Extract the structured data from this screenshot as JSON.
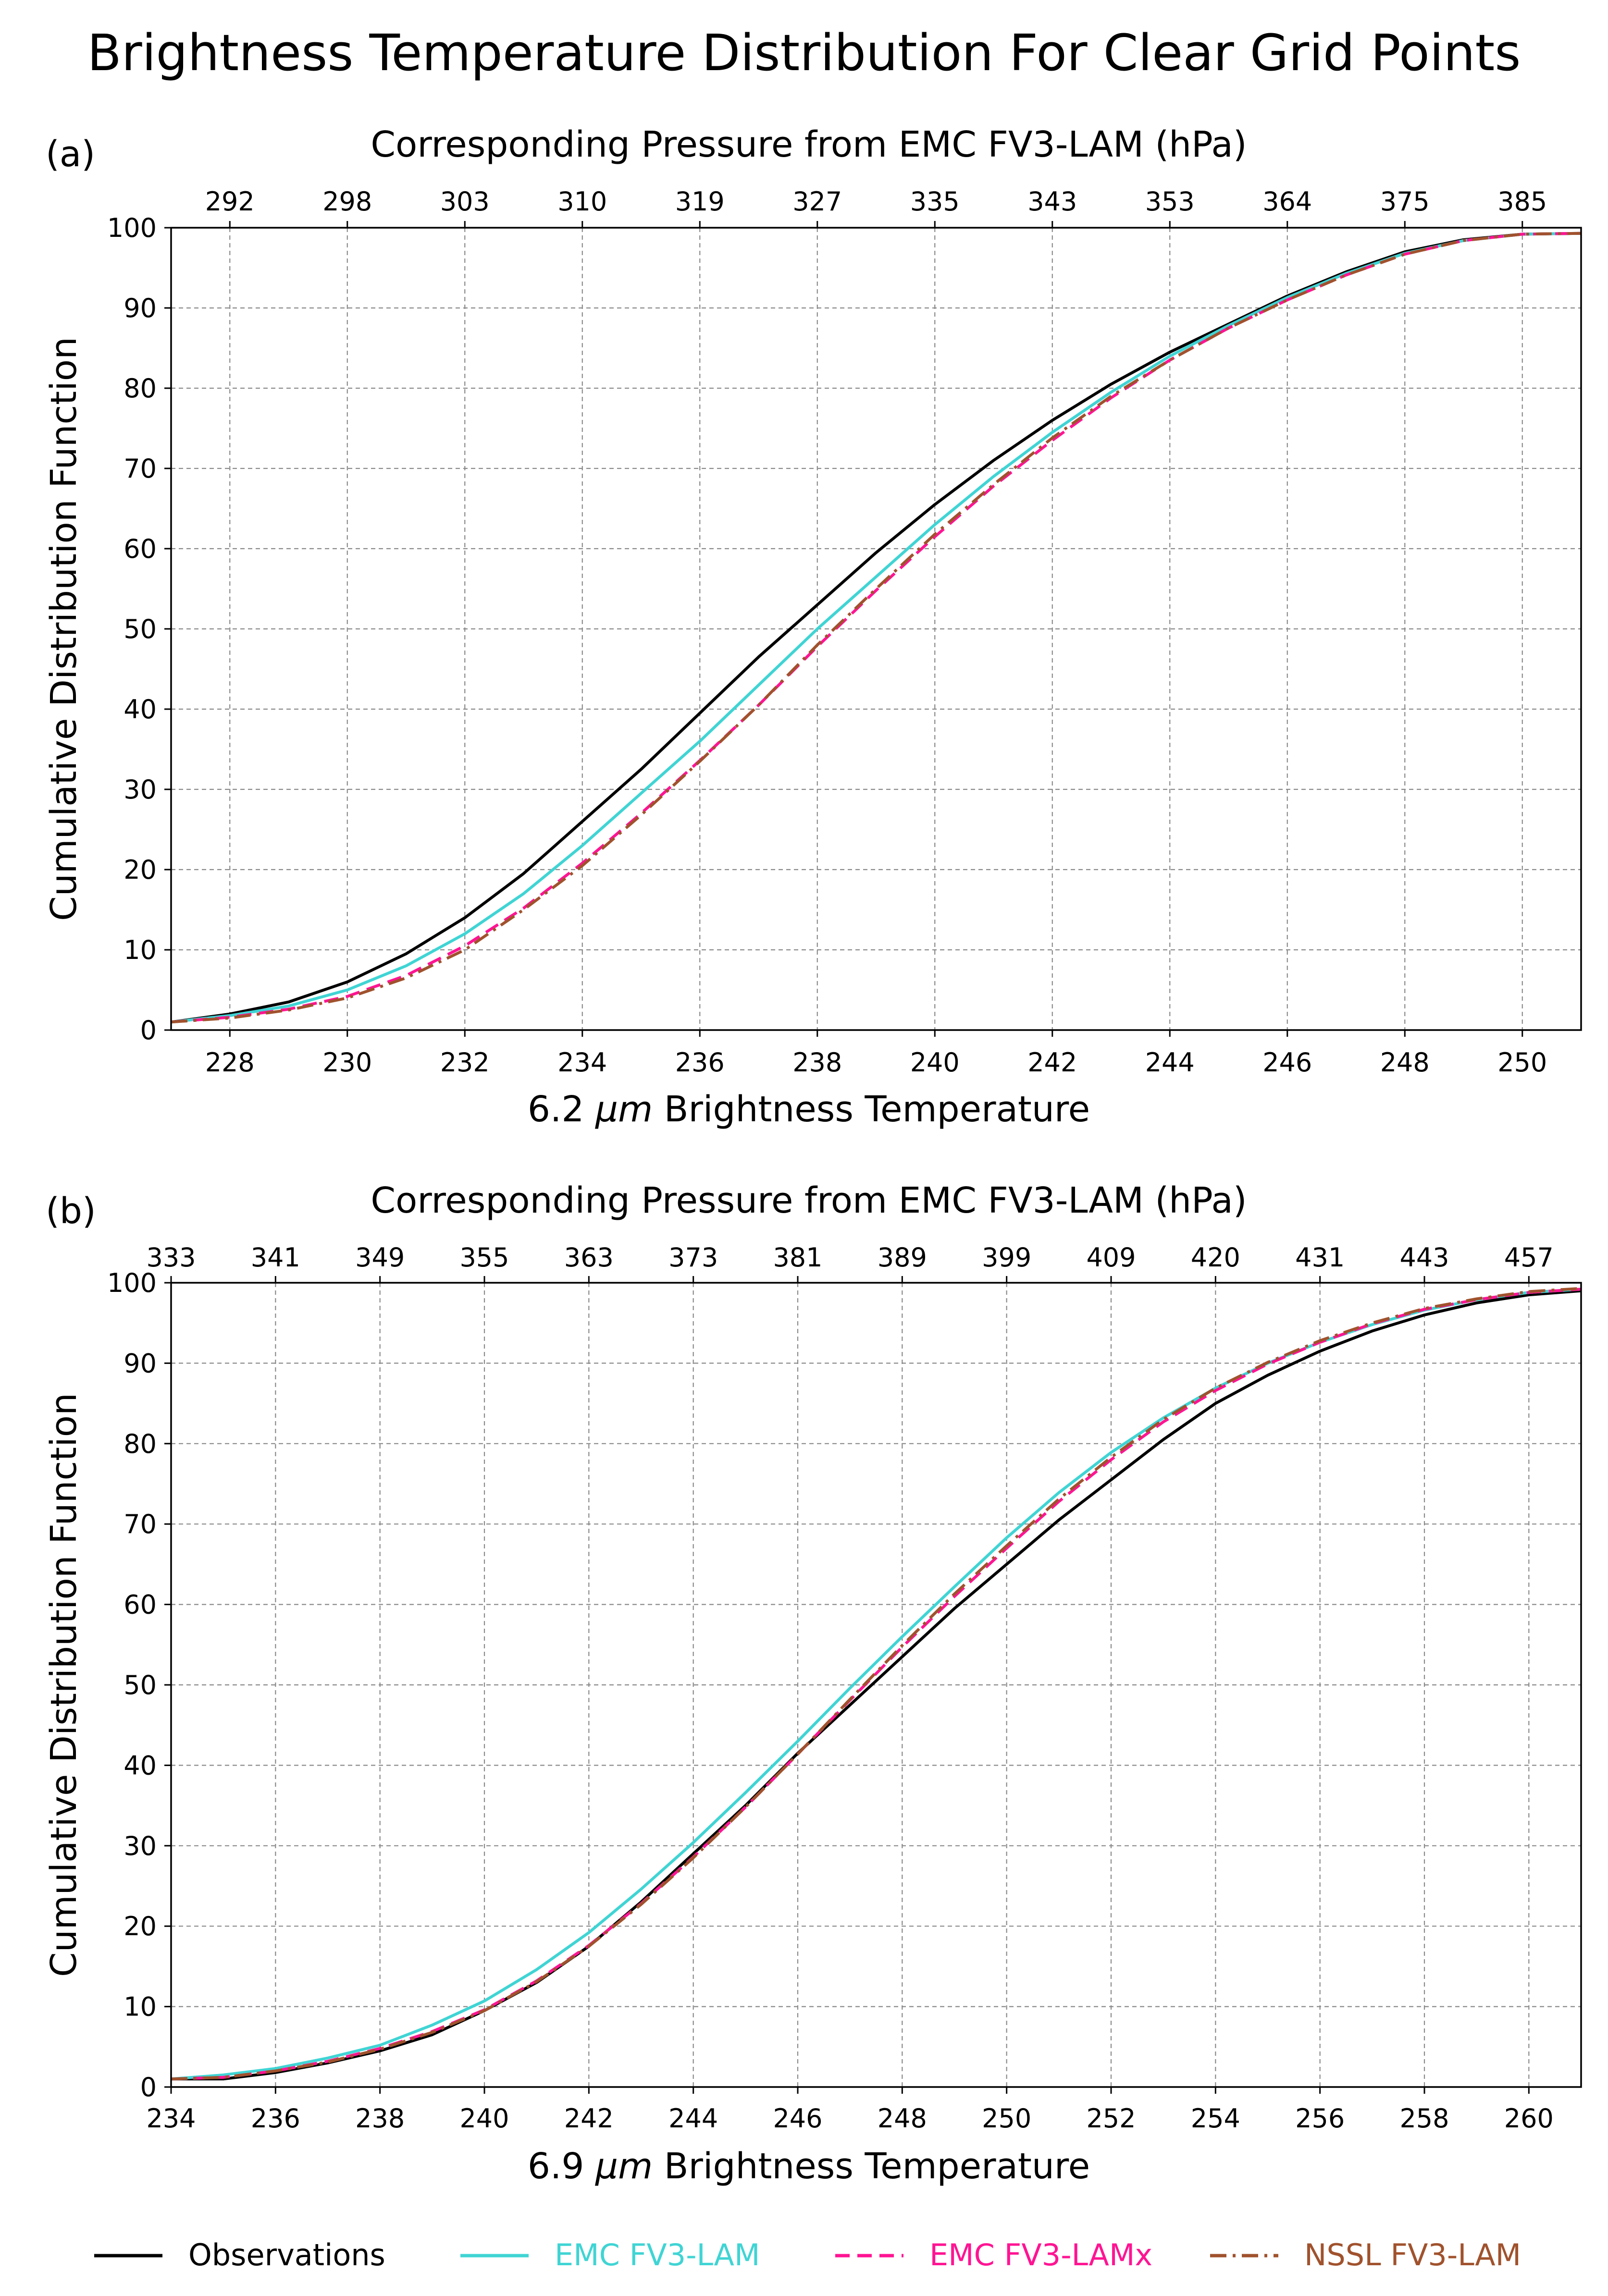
{
  "figure": {
    "title": "Brightness Temperature Distribution For Clear Grid Points"
  },
  "series_styles": [
    {
      "name": "Observations",
      "color": "#000000",
      "dash": "solid"
    },
    {
      "name": "EMC FV3-LAM",
      "color": "#40d4d4",
      "dash": "solid"
    },
    {
      "name": "EMC FV3-LAMx",
      "color": "#ff1493",
      "dash": "dashed"
    },
    {
      "name": "NSSL FV3-LAM",
      "color": "#a0522d",
      "dash": "dashdot"
    }
  ],
  "legend": {
    "placement": "bottom-center",
    "entries": [
      "Observations",
      "EMC FV3-LAM",
      "EMC FV3-LAMx",
      "NSSL FV3-LAM"
    ]
  },
  "chart_data": [
    {
      "type": "line",
      "panel_label": "(a)",
      "xlabel": "6.2 μm Brightness Temperature",
      "xlabel_parts": {
        "before": "6.2 ",
        "italic": "μm",
        "after": " Brightness Temperature"
      },
      "ylabel": "Cumulative Distribution Function",
      "top_axis_label": "Corresponding Pressure from EMC FV3-LAM (hPa)",
      "xlim": [
        227,
        251
      ],
      "ylim": [
        0,
        100
      ],
      "xticks": [
        228,
        230,
        232,
        234,
        236,
        238,
        240,
        242,
        244,
        246,
        248,
        250
      ],
      "yticks": [
        0,
        10,
        20,
        30,
        40,
        50,
        60,
        70,
        80,
        90,
        100
      ],
      "top_ticks": [
        {
          "x": 228,
          "label": "292"
        },
        {
          "x": 230,
          "label": "298"
        },
        {
          "x": 232,
          "label": "303"
        },
        {
          "x": 234,
          "label": "310"
        },
        {
          "x": 236,
          "label": "319"
        },
        {
          "x": 238,
          "label": "327"
        },
        {
          "x": 240,
          "label": "335"
        },
        {
          "x": 242,
          "label": "343"
        },
        {
          "x": 244,
          "label": "353"
        },
        {
          "x": 246,
          "label": "364"
        },
        {
          "x": 248,
          "label": "375"
        },
        {
          "x": 250,
          "label": "385"
        }
      ],
      "x": [
        227,
        228,
        229,
        230,
        231,
        232,
        233,
        234,
        235,
        236,
        237,
        238,
        239,
        240,
        241,
        242,
        243,
        244,
        245,
        246,
        247,
        248,
        249,
        250,
        251
      ],
      "series": [
        {
          "name": "Observations",
          "values": [
            1,
            2,
            3.5,
            6,
            9.5,
            14,
            19.5,
            26,
            32.5,
            39.5,
            46.5,
            53,
            59.5,
            65.5,
            71,
            76,
            80.5,
            84.5,
            88,
            91.5,
            94.5,
            97,
            98.5,
            99.2,
            99.3
          ]
        },
        {
          "name": "EMC FV3-LAM",
          "values": [
            1,
            1.8,
            3,
            5,
            8,
            12,
            17,
            23,
            29.5,
            36,
            43,
            50,
            56.5,
            63,
            69,
            74.5,
            79.5,
            84,
            87.8,
            91.3,
            94.3,
            96.8,
            98.4,
            99.2,
            99.3
          ]
        },
        {
          "name": "EMC FV3-LAMx",
          "values": [
            1,
            1.6,
            2.6,
            4.2,
            6.8,
            10.5,
            15.2,
            20.8,
            27,
            33.6,
            40.5,
            47.8,
            54.8,
            61.5,
            67.8,
            73.5,
            78.8,
            83.5,
            87.5,
            91,
            94.1,
            96.7,
            98.4,
            99.2,
            99.3
          ]
        },
        {
          "name": "NSSL FV3-LAM",
          "values": [
            1,
            1.5,
            2.5,
            4,
            6.5,
            10,
            15,
            20.5,
            26.8,
            33.5,
            40.5,
            48,
            55,
            61.8,
            68,
            73.8,
            79,
            83.5,
            87.5,
            91,
            94.1,
            96.7,
            98.4,
            99.2,
            99.3
          ]
        }
      ]
    },
    {
      "type": "line",
      "panel_label": "(b)",
      "xlabel": "6.9 μm Brightness Temperature",
      "xlabel_parts": {
        "before": "6.9 ",
        "italic": "μm",
        "after": " Brightness Temperature"
      },
      "ylabel": "Cumulative Distribution Function",
      "top_axis_label": "Corresponding Pressure from EMC FV3-LAM (hPa)",
      "xlim": [
        234,
        261
      ],
      "ylim": [
        0,
        100
      ],
      "xticks": [
        234,
        236,
        238,
        240,
        242,
        244,
        246,
        248,
        250,
        252,
        254,
        256,
        258,
        260
      ],
      "yticks": [
        0,
        10,
        20,
        30,
        40,
        50,
        60,
        70,
        80,
        90,
        100
      ],
      "top_ticks": [
        {
          "x": 234,
          "label": "333"
        },
        {
          "x": 236,
          "label": "341"
        },
        {
          "x": 238,
          "label": "349"
        },
        {
          "x": 240,
          "label": "355"
        },
        {
          "x": 242,
          "label": "363"
        },
        {
          "x": 244,
          "label": "373"
        },
        {
          "x": 246,
          "label": "381"
        },
        {
          "x": 248,
          "label": "389"
        },
        {
          "x": 250,
          "label": "399"
        },
        {
          "x": 252,
          "label": "409"
        },
        {
          "x": 254,
          "label": "420"
        },
        {
          "x": 256,
          "label": "431"
        },
        {
          "x": 258,
          "label": "443"
        },
        {
          "x": 260,
          "label": "457"
        }
      ],
      "x": [
        234,
        235,
        236,
        237,
        238,
        239,
        240,
        241,
        242,
        243,
        244,
        245,
        246,
        247,
        248,
        249,
        250,
        251,
        252,
        253,
        254,
        255,
        256,
        257,
        258,
        259,
        260,
        261
      ],
      "series": [
        {
          "name": "Observations",
          "values": [
            1,
            1,
            1.8,
            3,
            4.5,
            6.5,
            9.5,
            13,
            17.5,
            23,
            29,
            35,
            41.5,
            47.5,
            53.5,
            59.5,
            65,
            70.5,
            75.5,
            80.5,
            85,
            88.5,
            91.5,
            94,
            96,
            97.5,
            98.5,
            99
          ]
        },
        {
          "name": "EMC FV3-LAM",
          "values": [
            1,
            1.5,
            2.3,
            3.6,
            5.2,
            7.7,
            10.7,
            14.6,
            19.2,
            24.6,
            30.4,
            36.6,
            43,
            49.6,
            56,
            62.2,
            68.3,
            73.9,
            78.9,
            83.2,
            86.9,
            90,
            92.6,
            94.8,
            96.6,
            97.9,
            98.8,
            99.2
          ]
        },
        {
          "name": "EMC FV3-LAMx",
          "values": [
            1,
            1.2,
            2,
            3.2,
            4.8,
            6.9,
            9.6,
            13.2,
            17.6,
            22.8,
            28.6,
            34.8,
            41.4,
            48.1,
            54.7,
            61,
            67,
            72.8,
            78,
            82.7,
            86.6,
            89.9,
            92.6,
            94.9,
            96.7,
            97.9,
            98.8,
            99.2
          ]
        },
        {
          "name": "NSSL FV3-LAM",
          "values": [
            1,
            1.2,
            2,
            3.1,
            4.7,
            6.8,
            9.5,
            13.1,
            17.5,
            22.7,
            28.5,
            34.8,
            41.4,
            48.2,
            54.9,
            61.3,
            67.3,
            73.1,
            78.3,
            83,
            86.9,
            90.1,
            92.8,
            95,
            96.8,
            98,
            98.9,
            99.3
          ]
        }
      ]
    }
  ]
}
